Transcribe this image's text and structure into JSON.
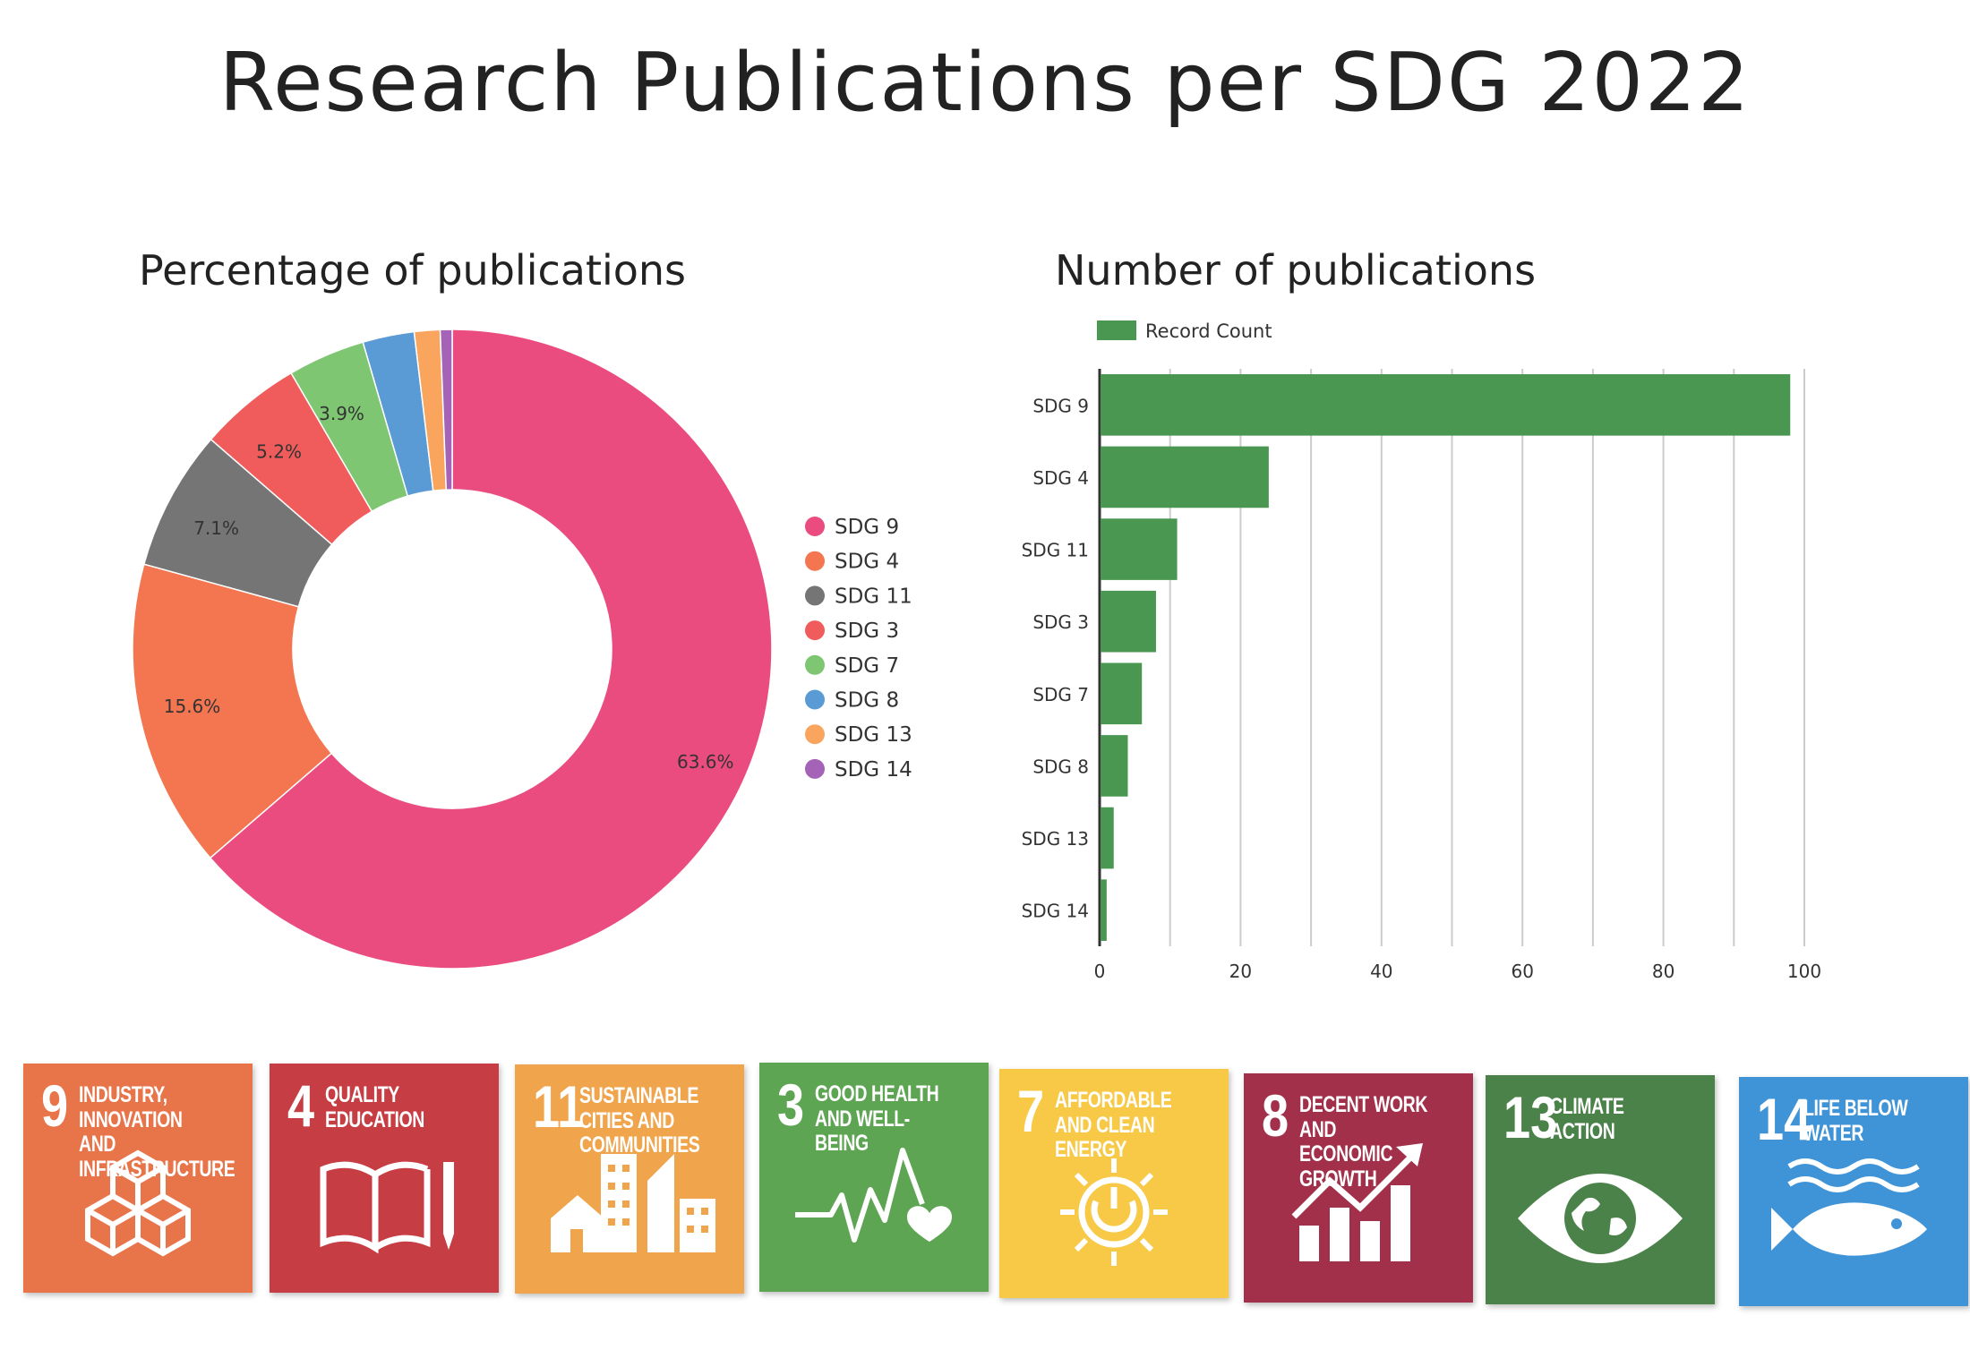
{
  "title": "Research Publications per SDG 2022",
  "chart_data": [
    {
      "type": "pie",
      "variant": "donut",
      "title": "Percentage of publications",
      "legend_position": "right",
      "slices": [
        {
          "label": "SDG 9",
          "value": 63.6,
          "color": "#ea4c7f"
        },
        {
          "label": "SDG 4",
          "value": 15.6,
          "color": "#f37650"
        },
        {
          "label": "SDG 11",
          "value": 7.1,
          "color": "#757575"
        },
        {
          "label": "SDG 3",
          "value": 5.2,
          "color": "#f05b5b"
        },
        {
          "label": "SDG 7",
          "value": 3.9,
          "color": "#7fc672"
        },
        {
          "label": "SDG 8",
          "value": 2.6,
          "color": "#5b9bd5"
        },
        {
          "label": "SDG 13",
          "value": 1.3,
          "color": "#f9a55e"
        },
        {
          "label": "SDG 14",
          "value": 0.6,
          "color": "#a463b7"
        }
      ],
      "shown_labels": [
        "63.6%",
        "15.6%",
        "7.1%",
        "5.2%",
        "3.9%"
      ]
    },
    {
      "type": "bar",
      "orientation": "horizontal",
      "title": "Number of publications",
      "legend": [
        "Record Count"
      ],
      "legend_position": "top-left",
      "categories": [
        "SDG 9",
        "SDG 4",
        "SDG 11",
        "SDG 3",
        "SDG 7",
        "SDG 8",
        "SDG 13",
        "SDG 14"
      ],
      "series": [
        {
          "name": "Record Count",
          "values": [
            98,
            24,
            11,
            8,
            6,
            4,
            2,
            1
          ],
          "color": "#4a9751"
        }
      ],
      "xlim": [
        0,
        100
      ],
      "xticks": [
        "0",
        "20",
        "40",
        "60",
        "80",
        "100"
      ],
      "grid": true
    }
  ],
  "sdg_tiles": [
    {
      "number": "9",
      "text": "Industry, innovation and infrastructure",
      "color": "#e8744a",
      "icon": "cubes-icon"
    },
    {
      "number": "4",
      "text": "Quality education",
      "color": "#c63d44",
      "icon": "book-pencil-icon"
    },
    {
      "number": "11",
      "text": "Sustainable cities and communities",
      "color": "#f0a44b",
      "icon": "city-buildings-icon"
    },
    {
      "number": "3",
      "text": "Good health and well-being",
      "color": "#5ea553",
      "icon": "heartbeat-icon"
    },
    {
      "number": "7",
      "text": "Affordable and clean energy",
      "color": "#f7c946",
      "icon": "sun-power-icon"
    },
    {
      "number": "8",
      "text": "Decent work and economic growth",
      "color": "#a2304a",
      "icon": "growth-chart-icon"
    },
    {
      "number": "13",
      "text": "Climate action",
      "color": "#4b8249",
      "icon": "eye-globe-icon"
    },
    {
      "number": "14",
      "text": "Life below water",
      "color": "#3f93d7",
      "icon": "fish-waves-icon"
    }
  ]
}
